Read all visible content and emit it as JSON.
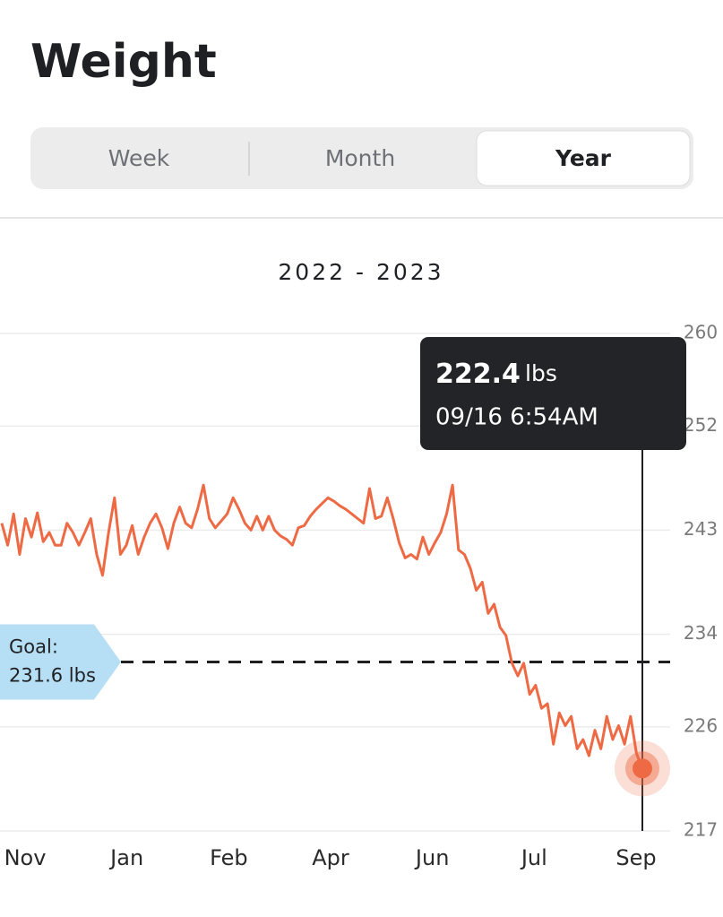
{
  "header": {
    "title": "Weight"
  },
  "tabs": [
    "Week",
    "Month",
    "Year"
  ],
  "selected_tab": "Year",
  "chart_data": {
    "type": "line",
    "subtitle": "2022 - 2023",
    "x_labels": [
      "Nov",
      "Jan",
      "Feb",
      "Apr",
      "Jun",
      "Jul",
      "Sep"
    ],
    "color": "#ee6a45",
    "values": [
      243.6,
      241.7,
      244.4,
      240.9,
      244.0,
      242.4,
      244.5,
      242.0,
      242.8,
      241.7,
      241.7,
      243.6,
      242.8,
      241.7,
      242.8,
      244.0,
      240.9,
      239.1,
      242.8,
      245.8,
      240.9,
      241.7,
      243.4,
      240.9,
      242.4,
      243.6,
      244.4,
      243.2,
      241.4,
      243.6,
      245.0,
      243.6,
      243.2,
      244.8,
      246.9,
      244.0,
      243.2,
      243.8,
      244.4,
      245.8,
      244.8,
      243.6,
      243.0,
      244.2,
      243.0,
      244.2,
      243.0,
      242.5,
      242.2,
      241.7,
      243.2,
      243.4,
      244.2,
      244.8,
      245.3,
      245.8,
      245.5,
      245.1,
      244.8,
      244.4,
      244.0,
      243.6,
      246.6,
      244.0,
      244.2,
      245.8,
      244.0,
      241.9,
      240.6,
      240.9,
      240.5,
      242.4,
      240.9,
      241.9,
      242.8,
      244.4,
      246.9,
      241.3,
      240.9,
      239.7,
      237.8,
      238.5,
      235.8,
      236.6,
      234.6,
      233.9,
      231.5,
      230.4,
      231.5,
      228.8,
      229.6,
      227.6,
      228.0,
      224.5,
      227.2,
      226.1,
      226.9,
      224.1,
      224.9,
      223.5,
      225.7,
      224.1,
      226.9,
      224.9,
      226.1,
      224.5,
      226.9,
      223.7,
      222.4
    ],
    "ylim": [
      217,
      260
    ],
    "yticks": [
      260,
      252,
      243,
      234,
      226,
      217
    ],
    "grid": true,
    "goal": {
      "label": "Goal:",
      "value": 231.6,
      "value_label": "231.6 lbs"
    },
    "tooltip": {
      "value": 222.4,
      "unit": "lbs",
      "time": "09/16 6:54AM"
    }
  }
}
